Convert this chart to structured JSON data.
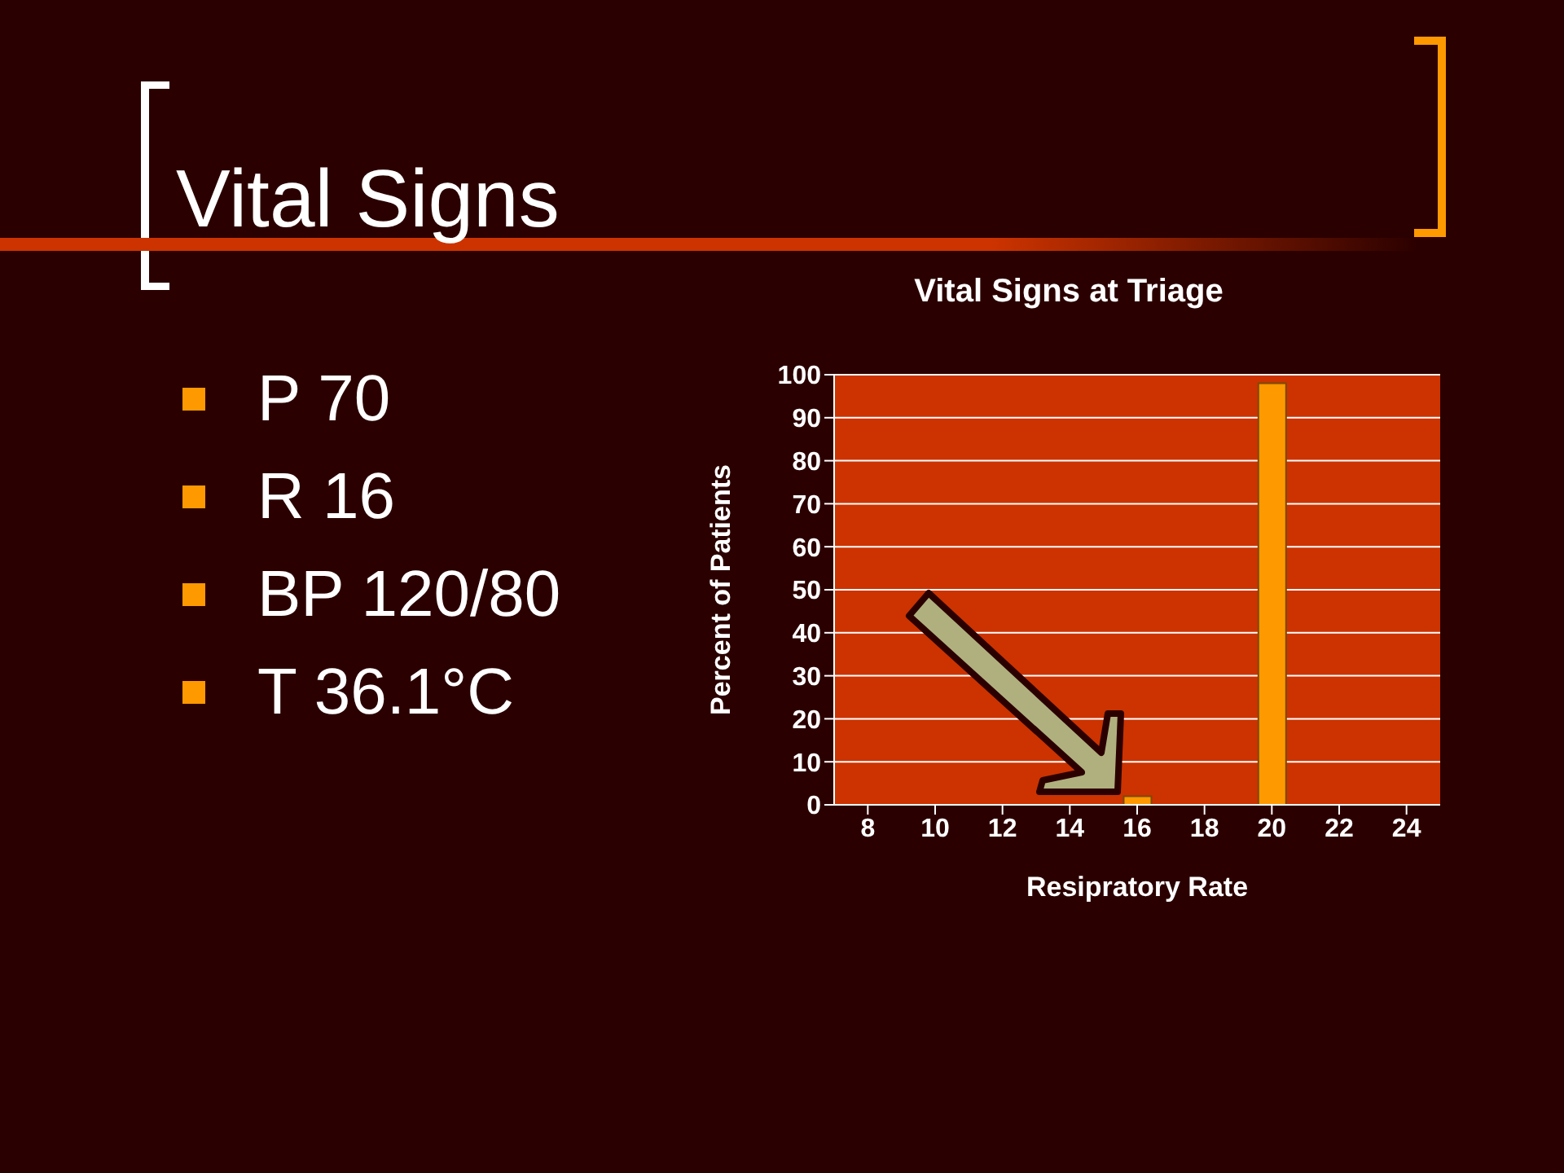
{
  "chart_data": {
    "type": "bar",
    "title": "Vital Signs at Triage",
    "xlabel": "Resipratory Rate",
    "ylabel": "Percent of Patients",
    "categories": [
      "8",
      "10",
      "12",
      "14",
      "16",
      "18",
      "20",
      "22",
      "24"
    ],
    "values": [
      0,
      0,
      0,
      0,
      2,
      0,
      98,
      0,
      0
    ],
    "color": "#ff9900",
    "ylim": [
      0,
      100
    ],
    "yticks": [
      0,
      10,
      20,
      30,
      40,
      50,
      60,
      70,
      80,
      90,
      100
    ],
    "grid": "y",
    "annotations": [
      "Vital Signs",
      "P 70",
      "R 16",
      "BP 120/80",
      "T 36.1°C"
    ]
  }
}
